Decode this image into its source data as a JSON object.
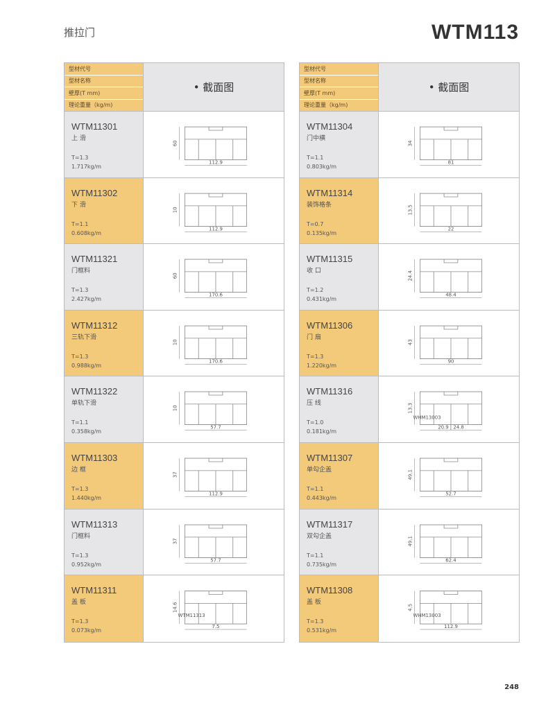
{
  "header": {
    "category": "推拉门",
    "series_code": "WTM113"
  },
  "table_header": {
    "labels": [
      "型材代号",
      "型材名称",
      "壁厚(T mm)",
      "理论重量（kg/m)"
    ],
    "section": "• 截面图"
  },
  "colors": {
    "orange": "#f3c97a",
    "gray": "#e6e6e8"
  },
  "left": [
    {
      "id": "WTM11301",
      "name": "上 滑",
      "t": "T=1.3",
      "w": "1.717kg/m",
      "dims": [
        "112.9",
        "60"
      ]
    },
    {
      "id": "WTM11302",
      "name": "下 滑",
      "t": "T=1.1",
      "w": "0.608kg/m",
      "dims": [
        "112.9",
        "10"
      ]
    },
    {
      "id": "WTM11321",
      "name": "门框料",
      "t": "T=1.3",
      "w": "2.427kg/m",
      "dims": [
        "170.6",
        "60"
      ]
    },
    {
      "id": "WTM11312",
      "name": "三轨下滑",
      "t": "T=1.3",
      "w": "0.988kg/m",
      "dims": [
        "170.6",
        "10"
      ]
    },
    {
      "id": "WTM11322",
      "name": "单轨下滑",
      "t": "T=1.1",
      "w": "0.358kg/m",
      "dims": [
        "57.7",
        "10"
      ]
    },
    {
      "id": "WTM11303",
      "name": "边 框",
      "t": "T=1.3",
      "w": "1.440kg/m",
      "dims": [
        "112.9",
        "37"
      ]
    },
    {
      "id": "WTM11313",
      "name": "门框料",
      "t": "T=1.3",
      "w": "0.952kg/m",
      "dims": [
        "57.7",
        "37"
      ]
    },
    {
      "id": "WTM11311",
      "name": "盖 板",
      "t": "T=1.3",
      "w": "0.073kg/m",
      "dims": [
        "7.5",
        "14.6"
      ],
      "ref": "WTM11313"
    }
  ],
  "right": [
    {
      "id": "WTM11304",
      "name": "门中横",
      "t": "T=1.1",
      "w": "0.803kg/m",
      "dims": [
        "81",
        "34"
      ]
    },
    {
      "id": "WTM11314",
      "name": "装饰格条",
      "t": "T=0.7",
      "w": "0.135kg/m",
      "dims": [
        "22",
        "13.5"
      ]
    },
    {
      "id": "WTM11315",
      "name": "收 口",
      "t": "T=1.2",
      "w": "0.431kg/m",
      "dims": [
        "48.4",
        "24.4"
      ]
    },
    {
      "id": "WTM11306",
      "name": "门 扇",
      "t": "T=1.3",
      "w": "1.220kg/m",
      "dims": [
        "90",
        "43"
      ]
    },
    {
      "id": "WTM11316",
      "name": "压 线",
      "t": "T=1.0",
      "w": "0.181kg/m",
      "dims": [
        "20.9 | 24.8",
        "13.3"
      ],
      "ref": "WHM13003"
    },
    {
      "id": "WTM11307",
      "name": "单勾企盖",
      "t": "T=1.1",
      "w": "0.443kg/m",
      "dims": [
        "52.7",
        "49.1"
      ]
    },
    {
      "id": "WTM11317",
      "name": "双勾企盖",
      "t": "T=1.1",
      "w": "0.735kg/m",
      "dims": [
        "62.4",
        "49.1"
      ]
    },
    {
      "id": "WTM11308",
      "name": "盖 板",
      "t": "T=1.3",
      "w": "0.531kg/m",
      "dims": [
        "112.9",
        "4.5"
      ],
      "ref": "WHM13003"
    }
  ],
  "page_number": "248"
}
